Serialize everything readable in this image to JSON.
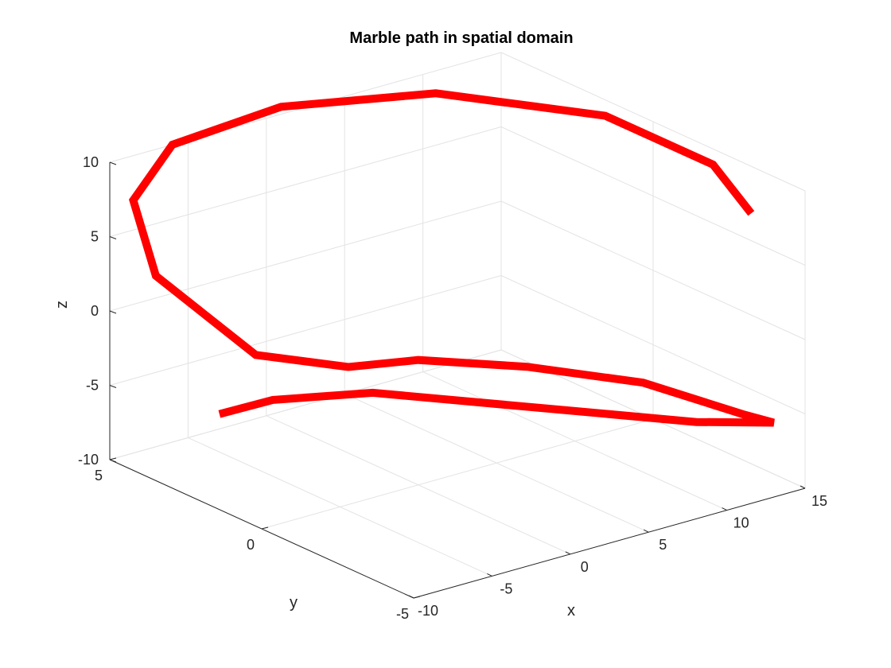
{
  "chart_data": {
    "type": "line",
    "title": "Marble path in spatial domain",
    "xlabel": "x",
    "ylabel": "y",
    "zlabel": "z",
    "xlim": [
      -10,
      15
    ],
    "ylim": [
      -5,
      5
    ],
    "zlim": [
      -10,
      10
    ],
    "x_ticks": [
      "-10",
      "-5",
      "0",
      "5",
      "10",
      "15"
    ],
    "y_ticks": [
      "-5",
      "0",
      "5"
    ],
    "z_ticks": [
      "-10",
      "-5",
      "0",
      "5",
      "10"
    ],
    "grid": true,
    "colors": {
      "line": "#ff0000",
      "grid": "#e3e3e3",
      "axis": "#262626"
    },
    "series": [
      {
        "x": [
          -3,
          -2.5,
          0,
          10,
          13,
          12,
          9.5,
          5,
          0,
          -3.5,
          -6.5,
          -9,
          -8.5,
          -6,
          -1,
          5,
          10,
          13,
          13.5
        ],
        "y": [
          5,
          3.5,
          1.5,
          -4,
          -5,
          -4.5,
          -2.5,
          -1,
          0,
          0.5,
          2,
          4,
          5,
          5,
          4,
          2,
          -1,
          -3,
          -4
        ],
        "z": [
          -9,
          -6.8,
          -5.2,
          -5,
          -5,
          -4.6,
          -3.6,
          -2.6,
          -1.6,
          -1.5,
          -1.2,
          3,
          7,
          10,
          12,
          13,
          12.8,
          10.5,
          8
        ]
      }
    ]
  }
}
